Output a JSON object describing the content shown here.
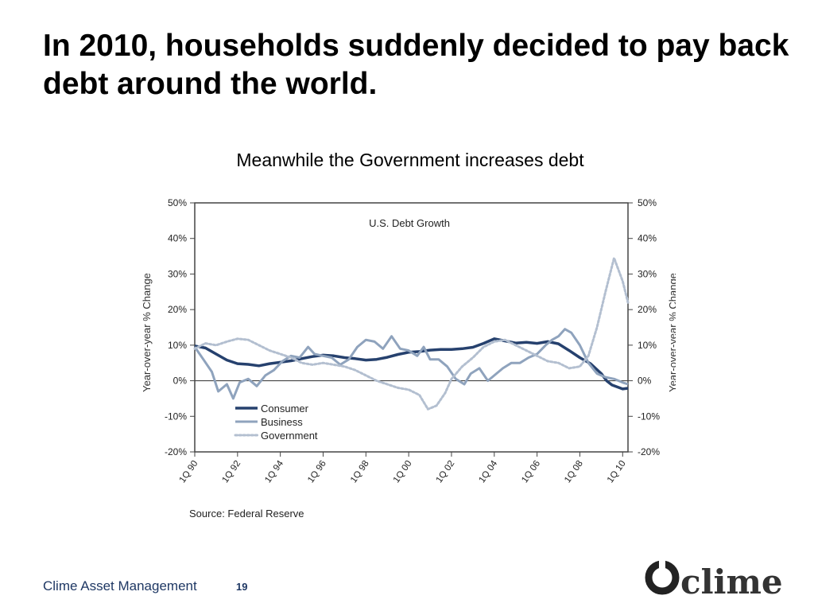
{
  "slide": {
    "title": "In 2010, households suddenly decided to pay back debt around the world.",
    "subtitle": "Meanwhile the Government increases debt",
    "footer": "Clime Asset Management",
    "page_number": "19",
    "logo_text": "clime"
  },
  "colors": {
    "consumer": "#26416e",
    "business": "#8fa3bd",
    "government": "#b3bfd0",
    "axis": "#444444"
  },
  "chart_data": {
    "type": "line",
    "title": "U.S. Debt Growth",
    "ylabel_left": "Year-over-year % Change",
    "ylabel_right": "Year-over-year % Change",
    "source": "Source: Federal Reserve",
    "ylim": [
      -20,
      50
    ],
    "yticks": [
      "50%",
      "40%",
      "30%",
      "20%",
      "10%",
      "0%",
      "-10%",
      "-20%"
    ],
    "ytick_values": [
      50,
      40,
      30,
      20,
      10,
      0,
      -10,
      -20
    ],
    "xlim": [
      1990,
      2010.25
    ],
    "xticks": [
      "1Q 90",
      "1Q 92",
      "1Q 94",
      "1Q 96",
      "1Q 98",
      "1Q 00",
      "1Q 02",
      "1Q 04",
      "1Q 06",
      "1Q 08",
      "1Q 10"
    ],
    "xtick_values": [
      1990,
      1992,
      1994,
      1996,
      1998,
      2000,
      2002,
      2004,
      2006,
      2008,
      2010
    ],
    "legend_position": "bottom-left",
    "series": [
      {
        "name": "Consumer",
        "style": "solid-thick",
        "points": [
          [
            1990,
            9.8
          ],
          [
            1990.5,
            9.2
          ],
          [
            1991,
            7.5
          ],
          [
            1991.5,
            5.8
          ],
          [
            1992,
            4.8
          ],
          [
            1992.5,
            4.6
          ],
          [
            1993,
            4.2
          ],
          [
            1993.5,
            4.8
          ],
          [
            1994,
            5.2
          ],
          [
            1994.5,
            5.6
          ],
          [
            1995,
            6.2
          ],
          [
            1995.5,
            6.8
          ],
          [
            1996,
            7.2
          ],
          [
            1996.5,
            7.0
          ],
          [
            1997,
            6.5
          ],
          [
            1997.5,
            6.2
          ],
          [
            1998,
            5.8
          ],
          [
            1998.5,
            6.0
          ],
          [
            1999,
            6.6
          ],
          [
            1999.5,
            7.4
          ],
          [
            2000,
            8.0
          ],
          [
            2000.5,
            8.2
          ],
          [
            2001,
            8.6
          ],
          [
            2001.5,
            8.8
          ],
          [
            2002,
            8.8
          ],
          [
            2002.5,
            9.0
          ],
          [
            2003,
            9.4
          ],
          [
            2003.5,
            10.5
          ],
          [
            2004,
            11.8
          ],
          [
            2004.5,
            11.2
          ],
          [
            2005,
            10.6
          ],
          [
            2005.5,
            10.8
          ],
          [
            2006,
            10.5
          ],
          [
            2006.5,
            11.0
          ],
          [
            2007,
            10.4
          ],
          [
            2007.5,
            8.5
          ],
          [
            2008,
            6.5
          ],
          [
            2008.5,
            4.8
          ],
          [
            2009,
            2.0
          ],
          [
            2009.25,
            0.0
          ],
          [
            2009.5,
            -1.2
          ],
          [
            2010,
            -2.3
          ],
          [
            2010.25,
            -2.1
          ]
        ]
      },
      {
        "name": "Business",
        "style": "solid",
        "points": [
          [
            1990,
            9.5
          ],
          [
            1990.4,
            6.0
          ],
          [
            1990.8,
            2.5
          ],
          [
            1991.1,
            -3.0
          ],
          [
            1991.5,
            -1.0
          ],
          [
            1991.8,
            -5.0
          ],
          [
            1992.1,
            -0.5
          ],
          [
            1992.5,
            0.5
          ],
          [
            1992.9,
            -1.5
          ],
          [
            1993.3,
            1.5
          ],
          [
            1993.7,
            3.0
          ],
          [
            1994.1,
            5.5
          ],
          [
            1994.5,
            7.0
          ],
          [
            1994.9,
            6.5
          ],
          [
            1995.3,
            9.5
          ],
          [
            1995.6,
            7.5
          ],
          [
            1996,
            7.0
          ],
          [
            1996.4,
            6.5
          ],
          [
            1996.8,
            4.5
          ],
          [
            1997.2,
            6.0
          ],
          [
            1997.6,
            9.5
          ],
          [
            1998,
            11.5
          ],
          [
            1998.4,
            11.0
          ],
          [
            1998.8,
            9.0
          ],
          [
            1999.2,
            12.5
          ],
          [
            1999.6,
            9.0
          ],
          [
            2000,
            8.5
          ],
          [
            2000.4,
            7.0
          ],
          [
            2000.7,
            9.5
          ],
          [
            2001,
            6.0
          ],
          [
            2001.4,
            6.0
          ],
          [
            2001.8,
            4.0
          ],
          [
            2002.2,
            0.5
          ],
          [
            2002.6,
            -1.0
          ],
          [
            2002.9,
            2.0
          ],
          [
            2003.3,
            3.5
          ],
          [
            2003.7,
            0.0
          ],
          [
            2004,
            1.5
          ],
          [
            2004.4,
            3.5
          ],
          [
            2004.8,
            5.0
          ],
          [
            2005.2,
            5.0
          ],
          [
            2005.6,
            6.5
          ],
          [
            2006,
            7.5
          ],
          [
            2006.4,
            10.0
          ],
          [
            2006.7,
            11.5
          ],
          [
            2007,
            12.5
          ],
          [
            2007.3,
            14.5
          ],
          [
            2007.6,
            13.5
          ],
          [
            2008,
            10.0
          ],
          [
            2008.4,
            5.0
          ],
          [
            2008.8,
            2.0
          ],
          [
            2009.2,
            1.0
          ],
          [
            2009.6,
            0.5
          ],
          [
            2010,
            -0.5
          ],
          [
            2010.25,
            -1.0
          ]
        ]
      },
      {
        "name": "Government",
        "style": "dotted",
        "points": [
          [
            1990,
            9.0
          ],
          [
            1990.5,
            10.5
          ],
          [
            1991,
            10.0
          ],
          [
            1991.5,
            11.0
          ],
          [
            1992,
            11.8
          ],
          [
            1992.5,
            11.5
          ],
          [
            1993,
            10.0
          ],
          [
            1993.5,
            8.5
          ],
          [
            1994,
            7.5
          ],
          [
            1994.5,
            6.5
          ],
          [
            1995,
            5.0
          ],
          [
            1995.5,
            4.5
          ],
          [
            1996,
            5.0
          ],
          [
            1996.5,
            4.5
          ],
          [
            1997,
            4.0
          ],
          [
            1997.5,
            3.0
          ],
          [
            1998,
            1.5
          ],
          [
            1998.5,
            0.0
          ],
          [
            1999,
            -1.0
          ],
          [
            1999.5,
            -2.0
          ],
          [
            2000,
            -2.5
          ],
          [
            2000.5,
            -4.0
          ],
          [
            2000.9,
            -8.0
          ],
          [
            2001.3,
            -7.0
          ],
          [
            2001.7,
            -3.5
          ],
          [
            2002,
            0.5
          ],
          [
            2002.5,
            4.0
          ],
          [
            2003,
            6.5
          ],
          [
            2003.5,
            9.5
          ],
          [
            2004,
            11.0
          ],
          [
            2004.5,
            11.5
          ],
          [
            2005,
            10.0
          ],
          [
            2005.5,
            8.5
          ],
          [
            2006,
            7.0
          ],
          [
            2006.5,
            5.5
          ],
          [
            2007,
            5.0
          ],
          [
            2007.5,
            3.5
          ],
          [
            2008,
            4.0
          ],
          [
            2008.4,
            7.0
          ],
          [
            2008.8,
            15.0
          ],
          [
            2009.2,
            25.0
          ],
          [
            2009.6,
            34.5
          ],
          [
            2010,
            28.0
          ],
          [
            2010.25,
            22.0
          ]
        ]
      }
    ]
  }
}
